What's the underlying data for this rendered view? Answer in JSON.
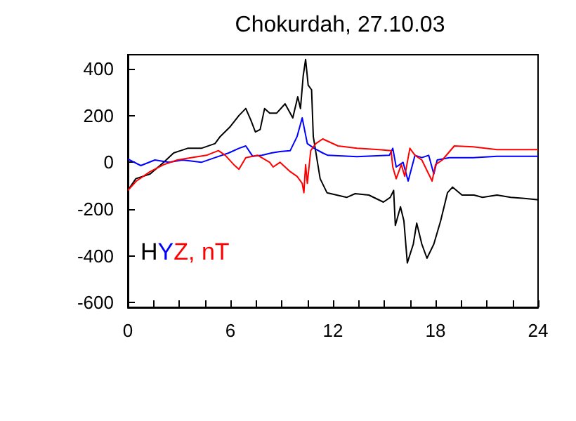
{
  "chart_data": {
    "type": "line",
    "title": "Chokurdah, 27.10.03",
    "annotations": [
      ", nT"
    ],
    "legend": "bottom left",
    "grid": false,
    "marker": "none",
    "line_style": "solid",
    "xlim": [
      0,
      24
    ],
    "xticks": [
      0,
      {
        "value": 1.5,
        "label": null
      },
      {
        "value": 3,
        "label": null
      },
      {
        "value": 4.5,
        "label": null
      },
      6,
      {
        "value": 7.5,
        "label": null
      },
      {
        "value": 9,
        "label": null
      },
      {
        "value": 10.5,
        "label": null
      },
      12,
      {
        "value": 13.5,
        "label": null
      },
      {
        "value": 15,
        "label": null
      },
      {
        "value": 16.5,
        "label": null
      },
      18,
      {
        "value": 19.5,
        "label": null
      },
      {
        "value": 21,
        "label": null
      },
      {
        "value": 22.5,
        "label": null
      },
      24
    ],
    "ylim": [
      -620,
      460
    ],
    "yticks": [
      -600,
      -400,
      -200,
      0,
      200,
      400
    ],
    "series": [
      {
        "name": "H",
        "color": "#000000",
        "x": [
          0,
          0.47,
          1.3,
          2.1,
          2.68,
          3.5,
          4.3,
          5.1,
          5.4,
          5.96,
          6.5,
          6.9,
          7.2,
          7.46,
          7.74,
          8.0,
          8.3,
          8.7,
          9.2,
          9.65,
          9.94,
          10.1,
          10.26,
          10.4,
          10.55,
          10.75,
          10.85,
          11.25,
          11.65,
          12.8,
          13.3,
          14.1,
          14.95,
          15.35,
          15.55,
          15.65,
          15.95,
          16.15,
          16.35,
          16.7,
          16.9,
          17.2,
          17.5,
          17.9,
          18.3,
          18.7,
          19.0,
          19.55,
          20.25,
          20.75,
          21.6,
          22.4,
          23.2,
          24.0
        ],
        "values": [
          -120,
          -70,
          -50,
          0,
          40,
          60,
          60,
          80,
          110,
          150,
          200,
          230,
          180,
          130,
          140,
          230,
          210,
          210,
          250,
          190,
          280,
          230,
          370,
          440,
          330,
          310,
          110,
          -70,
          -130,
          -150,
          -134,
          -140,
          -170,
          -150,
          -120,
          -270,
          -190,
          -250,
          -430,
          -350,
          -260,
          -350,
          -410,
          -350,
          -250,
          -130,
          -106,
          -140,
          -140,
          -150,
          -140,
          -150,
          -154,
          -160
        ]
      },
      {
        "name": "Y",
        "color": "#0000ff",
        "x": [
          0,
          0.76,
          1.58,
          2.4,
          3.2,
          4.3,
          5.1,
          5.9,
          6.5,
          6.9,
          7.3,
          7.85,
          8.4,
          8.9,
          9.5,
          9.9,
          10.2,
          10.5,
          10.9,
          11.4,
          11.7,
          13.4,
          15.3,
          15.5,
          15.7,
          16.1,
          16.4,
          16.8,
          17.2,
          17.6,
          17.9,
          18.1,
          18.8,
          20.2,
          21.6,
          24.0
        ],
        "values": [
          14,
          -14,
          10,
          0,
          10,
          0,
          20,
          40,
          60,
          70,
          26,
          30,
          40,
          46,
          50,
          110,
          190,
          80,
          60,
          40,
          30,
          24,
          30,
          60,
          -20,
          0,
          -80,
          30,
          20,
          30,
          -50,
          10,
          20,
          20,
          26,
          26
        ]
      },
      {
        "name": "Z",
        "color": "#ff0000",
        "x": [
          0,
          0.5,
          1.3,
          2.1,
          2.9,
          3.7,
          4.6,
          5.3,
          5.7,
          6.2,
          6.5,
          6.9,
          7.6,
          8.3,
          8.5,
          8.9,
          9.5,
          9.9,
          10.2,
          10.3,
          10.4,
          10.5,
          10.7,
          11.0,
          11.4,
          12.3,
          13.4,
          14.7,
          15.4,
          15.5,
          15.7,
          16.0,
          16.2,
          16.5,
          16.8,
          17.2,
          17.6,
          17.8,
          18.0,
          18.4,
          19.1,
          20.2,
          21.6,
          24.0
        ],
        "values": [
          -120,
          -80,
          -40,
          -10,
          10,
          20,
          30,
          50,
          30,
          -10,
          -30,
          20,
          30,
          0,
          -20,
          0,
          -40,
          -60,
          -90,
          -130,
          -10,
          -90,
          50,
          80,
          100,
          70,
          60,
          54,
          50,
          -20,
          -70,
          -10,
          -60,
          60,
          30,
          10,
          -50,
          -80,
          -10,
          10,
          70,
          66,
          54,
          54
        ]
      }
    ]
  }
}
